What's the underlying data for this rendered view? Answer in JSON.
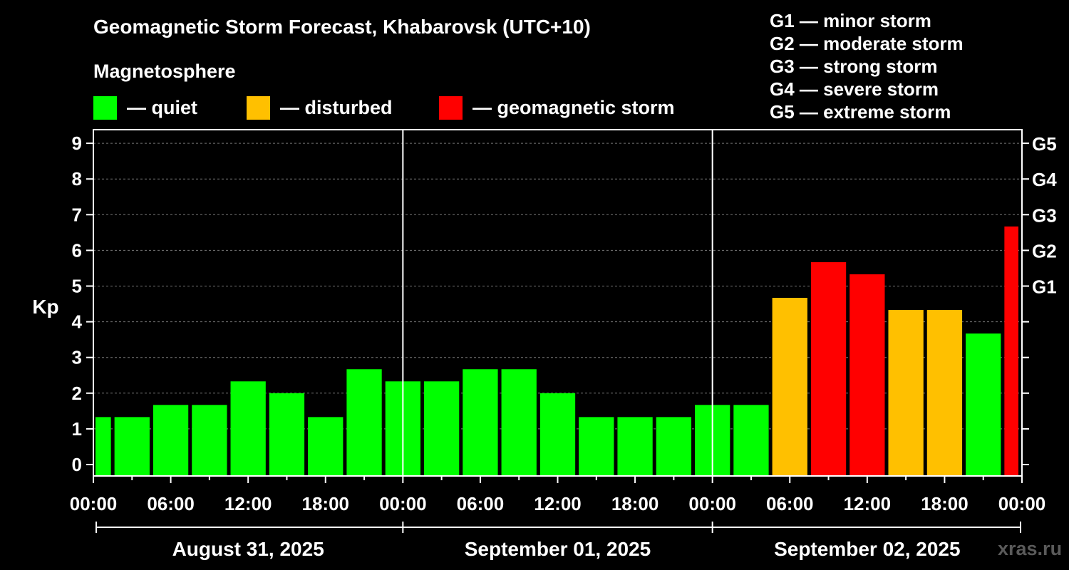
{
  "title": "Geomagnetic Storm Forecast, Khabarovsk (UTC+10)",
  "legend": {
    "heading": "Magnetosphere",
    "items": [
      {
        "label": "— quiet",
        "color": "#00ff00"
      },
      {
        "label": "— disturbed",
        "color": "#ffc000"
      },
      {
        "label": "— geomagnetic storm",
        "color": "#ff0000"
      }
    ]
  },
  "storm_levels": [
    "G1 — minor storm",
    "G2 — moderate storm",
    "G3 — strong storm",
    "G4 — severe storm",
    "G5 — extreme storm"
  ],
  "watermark": "xras.ru",
  "chart_data": {
    "type": "bar",
    "ylabel": "Kp",
    "ylim": [
      0,
      9
    ],
    "yticks": [
      "0",
      "1",
      "2",
      "3",
      "4",
      "5",
      "6",
      "7",
      "8",
      "9"
    ],
    "right_ticks": [
      {
        "value": 5,
        "label": "G1"
      },
      {
        "value": 6,
        "label": "G2"
      },
      {
        "value": 7,
        "label": "G3"
      },
      {
        "value": 8,
        "label": "G4"
      },
      {
        "value": 9,
        "label": "G5"
      }
    ],
    "xticks": [
      "00:00",
      "06:00",
      "12:00",
      "18:00",
      "00:00",
      "06:00",
      "12:00",
      "18:00",
      "00:00",
      "06:00",
      "12:00",
      "18:00",
      "00:00"
    ],
    "days": [
      "August 31, 2025",
      "September 01, 2025",
      "September 02, 2025"
    ],
    "grid": true,
    "bar_interval_hours": 3,
    "values": [
      1.33,
      1.33,
      1.67,
      1.67,
      2.33,
      2.0,
      1.33,
      2.67,
      2.33,
      2.33,
      2.67,
      2.67,
      2.0,
      1.33,
      1.33,
      1.33,
      1.67,
      1.67,
      4.67,
      5.67,
      5.33,
      4.33,
      4.33,
      3.67,
      6.67
    ],
    "bar_levels": [
      "quiet",
      "quiet",
      "quiet",
      "quiet",
      "quiet",
      "quiet",
      "quiet",
      "quiet",
      "quiet",
      "quiet",
      "quiet",
      "quiet",
      "quiet",
      "quiet",
      "quiet",
      "quiet",
      "quiet",
      "quiet",
      "disturbed",
      "geomagnetic storm",
      "geomagnetic storm",
      "disturbed",
      "disturbed",
      "quiet",
      "geomagnetic storm"
    ],
    "level_colors": {
      "quiet": "#00ff00",
      "disturbed": "#ffc000",
      "geomagnetic storm": "#ff0000"
    }
  }
}
